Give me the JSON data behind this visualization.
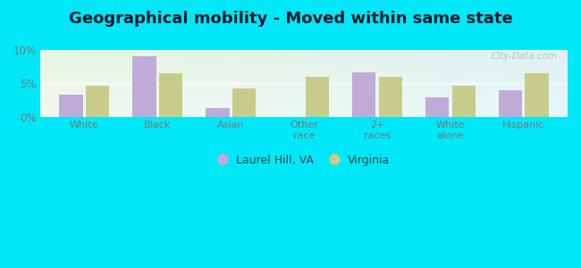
{
  "title": "Geographical mobility - Moved within same state",
  "categories": [
    "White",
    "Black",
    "Asian",
    "Other\nrace",
    "2+\nraces",
    "White\nalone",
    "Hispanic"
  ],
  "laurel_hill": [
    3.3,
    9.0,
    1.3,
    0.0,
    6.7,
    2.9,
    4.0
  ],
  "virginia": [
    4.6,
    6.5,
    4.2,
    6.0,
    6.0,
    4.6,
    6.5
  ],
  "laurel_color": "#c0aad8",
  "virginia_color": "#c8cc8a",
  "ylim": [
    0,
    10
  ],
  "yticks": [
    0,
    5,
    10
  ],
  "ytick_labels": [
    "0%",
    "5%",
    "10%"
  ],
  "background_outer": "#00e8f8",
  "background_inner_topleft": "#e8f5e0",
  "background_inner_topright": "#e0f0f5",
  "background_inner_bottomleft": "#f0faf0",
  "background_inner_bottomright": "#e8f8f8",
  "legend_laurel": "Laurel Hill, VA",
  "legend_virginia": "Virginia",
  "bar_width": 0.32,
  "title_fontsize": 13,
  "watermark": "City-Data.com",
  "tick_label_color": "#777777",
  "title_color": "#1a1a2e"
}
